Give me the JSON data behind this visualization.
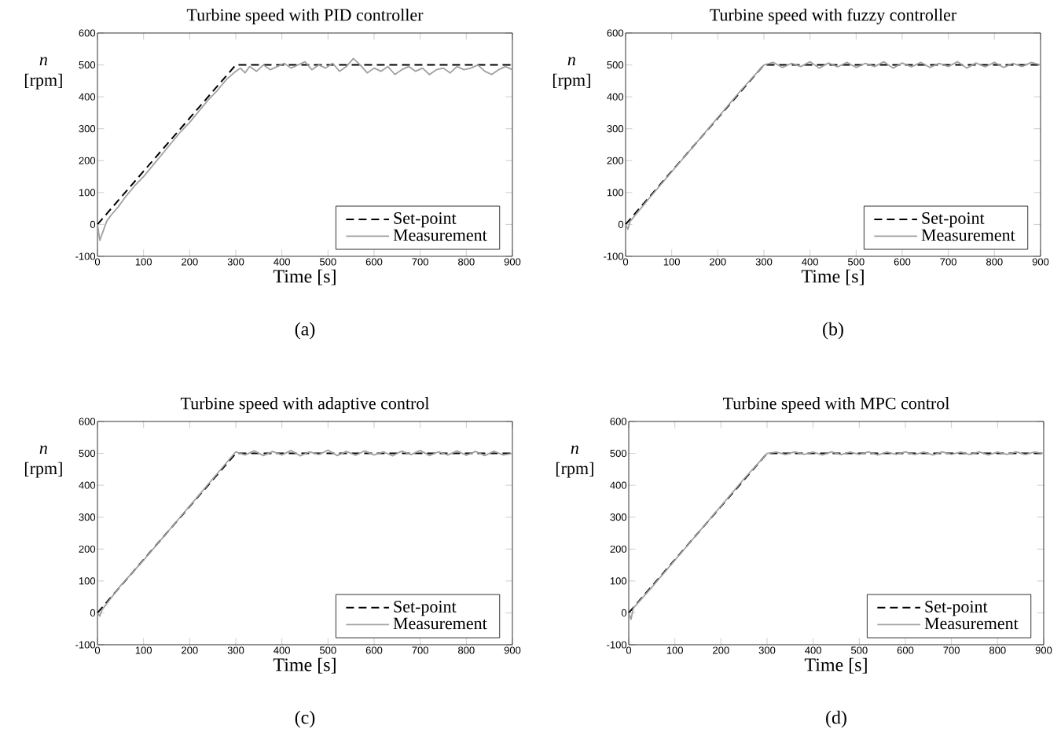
{
  "chart_data": [
    {
      "type": "line",
      "title": "Turbine speed with PID controller",
      "xlabel": "Time [s]",
      "ylabel": "*n* [rpm]",
      "annotations": [
        "(a)"
      ],
      "xlim": [
        0,
        900
      ],
      "ylim": [
        -100,
        600
      ],
      "xticks": [
        0,
        100,
        200,
        300,
        400,
        500,
        600,
        700,
        800,
        900
      ],
      "yticks": [
        -100,
        0,
        100,
        200,
        300,
        400,
        500,
        600
      ],
      "legend": "bottom right",
      "grid": false,
      "series": [
        {
          "name": "Set-point",
          "color": "#000000",
          "line_style": "dashed",
          "x": [
            0,
            300,
            900
          ],
          "values": [
            0,
            500,
            500
          ]
        },
        {
          "name": "Measurement",
          "color": "#a0a0a0",
          "line_style": "solid",
          "x": [
            0,
            5,
            10,
            20,
            30,
            45,
            60,
            80,
            100,
            120,
            140,
            160,
            180,
            200,
            220,
            240,
            260,
            280,
            300,
            310,
            320,
            330,
            345,
            360,
            375,
            390,
            405,
            420,
            435,
            450,
            465,
            480,
            495,
            510,
            525,
            540,
            555,
            570,
            585,
            600,
            615,
            630,
            645,
            660,
            675,
            690,
            705,
            720,
            735,
            750,
            765,
            780,
            795,
            810,
            825,
            840,
            855,
            870,
            885,
            900
          ],
          "values": [
            0,
            -50,
            -30,
            10,
            30,
            55,
            85,
            120,
            150,
            185,
            220,
            255,
            290,
            320,
            355,
            390,
            420,
            455,
            480,
            490,
            475,
            495,
            480,
            500,
            485,
            495,
            505,
            490,
            500,
            510,
            485,
            500,
            490,
            505,
            480,
            495,
            520,
            500,
            475,
            490,
            480,
            495,
            470,
            485,
            495,
            480,
            490,
            470,
            485,
            490,
            475,
            495,
            485,
            490,
            500,
            480,
            470,
            485,
            495,
            485
          ]
        }
      ]
    },
    {
      "type": "line",
      "title": "Turbine speed with fuzzy controller",
      "xlabel": "Time [s]",
      "ylabel": "*n* [rpm]",
      "annotations": [
        "(b)"
      ],
      "xlim": [
        0,
        900
      ],
      "ylim": [
        -100,
        600
      ],
      "xticks": [
        0,
        100,
        200,
        300,
        400,
        500,
        600,
        700,
        800,
        900
      ],
      "yticks": [
        -100,
        0,
        100,
        200,
        300,
        400,
        500,
        600
      ],
      "legend": "bottom right",
      "grid": false,
      "series": [
        {
          "name": "Set-point",
          "color": "#000000",
          "line_style": "dashed",
          "x": [
            0,
            300,
            900
          ],
          "values": [
            0,
            500,
            500
          ]
        },
        {
          "name": "Measurement",
          "color": "#a0a0a0",
          "line_style": "solid",
          "x": [
            0,
            5,
            10,
            50,
            100,
            150,
            200,
            250,
            300,
            320,
            340,
            360,
            380,
            400,
            420,
            440,
            460,
            480,
            500,
            520,
            540,
            560,
            580,
            600,
            620,
            640,
            660,
            680,
            700,
            720,
            740,
            760,
            780,
            800,
            820,
            840,
            860,
            880,
            900
          ],
          "values": [
            0,
            -15,
            10,
            80,
            165,
            250,
            335,
            420,
            500,
            508,
            492,
            505,
            495,
            510,
            490,
            506,
            494,
            508,
            492,
            505,
            495,
            510,
            490,
            506,
            494,
            508,
            492,
            505,
            495,
            510,
            490,
            506,
            494,
            508,
            492,
            505,
            495,
            508,
            500
          ]
        }
      ]
    },
    {
      "type": "line",
      "title": "Turbine speed with adaptive control",
      "xlabel": "Time [s]",
      "ylabel": "*n* [rpm]",
      "annotations": [
        "(c)"
      ],
      "xlim": [
        0,
        900
      ],
      "ylim": [
        -100,
        600
      ],
      "xticks": [
        0,
        100,
        200,
        300,
        400,
        500,
        600,
        700,
        800,
        900
      ],
      "yticks": [
        -100,
        0,
        100,
        200,
        300,
        400,
        500,
        600
      ],
      "legend": "bottom right",
      "grid": false,
      "series": [
        {
          "name": "Set-point",
          "color": "#000000",
          "line_style": "dashed",
          "x": [
            0,
            300,
            900
          ],
          "values": [
            0,
            500,
            500
          ]
        },
        {
          "name": "Measurement",
          "color": "#a0a0a0",
          "line_style": "solid",
          "x": [
            0,
            5,
            10,
            50,
            100,
            150,
            200,
            250,
            300,
            320,
            340,
            360,
            380,
            400,
            420,
            440,
            460,
            480,
            500,
            520,
            540,
            560,
            580,
            600,
            620,
            640,
            660,
            680,
            700,
            720,
            740,
            760,
            780,
            800,
            820,
            840,
            860,
            880,
            900
          ],
          "values": [
            0,
            -10,
            10,
            85,
            165,
            250,
            335,
            420,
            505,
            495,
            508,
            493,
            506,
            495,
            509,
            492,
            505,
            496,
            510,
            493,
            506,
            494,
            508,
            495,
            505,
            492,
            507,
            496,
            509,
            493,
            505,
            495,
            508,
            494,
            506,
            493,
            507,
            495,
            500
          ]
        }
      ]
    },
    {
      "type": "line",
      "title": "Turbine speed with MPC control",
      "xlabel": "Time [s]",
      "ylabel": "*n* [rpm]",
      "annotations": [
        "(d)"
      ],
      "xlim": [
        0,
        900
      ],
      "ylim": [
        -100,
        600
      ],
      "xticks": [
        0,
        100,
        200,
        300,
        400,
        500,
        600,
        700,
        800,
        900
      ],
      "yticks": [
        -100,
        0,
        100,
        200,
        300,
        400,
        500,
        600
      ],
      "legend": "bottom right",
      "grid": false,
      "series": [
        {
          "name": "Set-point",
          "color": "#000000",
          "line_style": "dashed",
          "x": [
            0,
            300,
            900
          ],
          "values": [
            0,
            500,
            500
          ]
        },
        {
          "name": "Measurement",
          "color": "#a0a0a0",
          "line_style": "solid",
          "x": [
            0,
            5,
            10,
            50,
            100,
            150,
            200,
            250,
            300,
            320,
            340,
            360,
            380,
            400,
            420,
            440,
            460,
            480,
            500,
            520,
            540,
            560,
            580,
            600,
            620,
            640,
            660,
            680,
            700,
            720,
            740,
            760,
            780,
            800,
            820,
            840,
            860,
            880,
            900
          ],
          "values": [
            0,
            -20,
            15,
            80,
            165,
            250,
            335,
            420,
            500,
            504,
            496,
            505,
            497,
            504,
            495,
            505,
            496,
            504,
            497,
            505,
            495,
            504,
            497,
            505,
            496,
            504,
            495,
            505,
            497,
            504,
            496,
            505,
            495,
            504,
            497,
            505,
            496,
            504,
            500
          ]
        }
      ]
    }
  ]
}
